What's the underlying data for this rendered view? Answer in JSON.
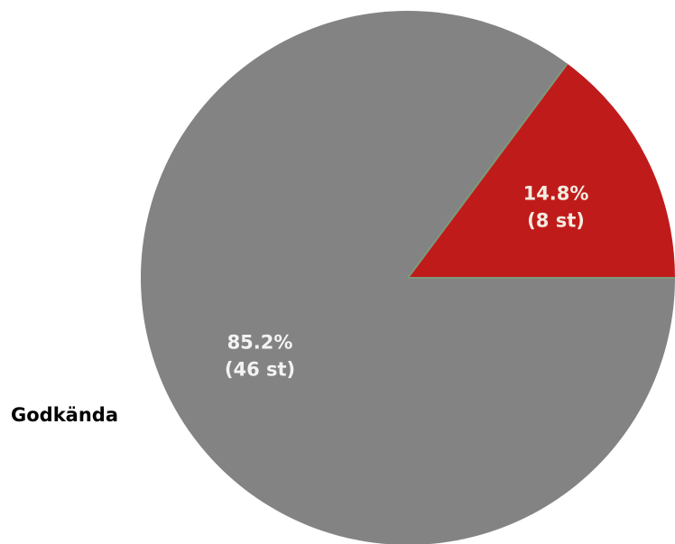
{
  "chart_data": {
    "type": "pie",
    "slices": [
      {
        "label": "",
        "value": 8,
        "percent_text": "14.8%",
        "count_text": "(8 st)",
        "color": "#c01b1b",
        "label_color": "#f3ece0"
      },
      {
        "label": "Godkända",
        "value": 46,
        "percent_text": "85.2%",
        "count_text": "(46 st)",
        "color": "#838383",
        "label_color": "#f3f3f3"
      }
    ],
    "separator_color": "#7b9a7b"
  }
}
